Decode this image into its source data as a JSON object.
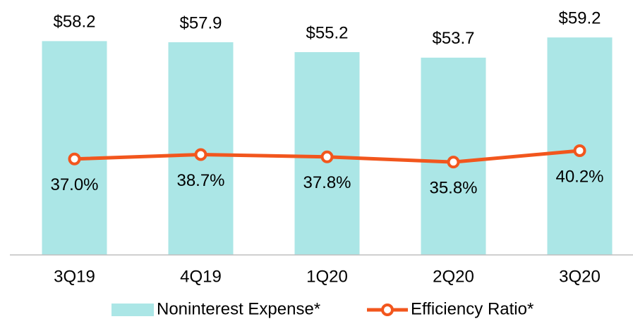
{
  "chart_data": {
    "type": "bar",
    "categories": [
      "3Q19",
      "4Q19",
      "1Q20",
      "2Q20",
      "3Q20"
    ],
    "series": [
      {
        "name": "Noninterest Expense*",
        "type": "bar",
        "color": "#abe6e6",
        "values": [
          58.2,
          57.9,
          55.2,
          53.7,
          59.2
        ],
        "value_labels": [
          "$58.2",
          "$57.9",
          "$55.2",
          "$53.7",
          "$59.2"
        ]
      },
      {
        "name": "Efficiency Ratio*",
        "type": "line",
        "axis": "y2",
        "color": "#f2561d",
        "values": [
          37.0,
          38.7,
          37.8,
          35.8,
          40.2
        ],
        "value_labels": [
          "37.0%",
          "38.7%",
          "37.8%",
          "35.8%",
          "40.2%"
        ]
      }
    ],
    "ylim": [
      0,
      60
    ],
    "y2lim": [
      0,
      85
    ],
    "legend": "bottom"
  }
}
